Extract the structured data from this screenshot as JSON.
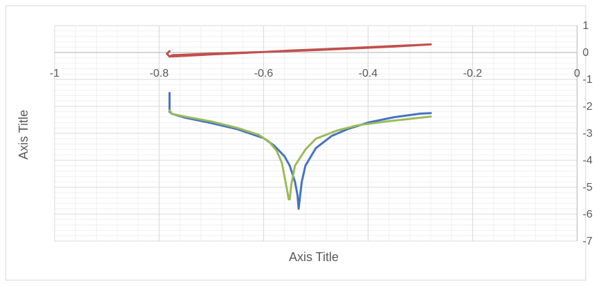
{
  "chart_data": {
    "type": "scatter",
    "title": "",
    "xlabel": "Axis Title",
    "ylabel": "Axis Title",
    "xlim": [
      -1,
      0
    ],
    "ylim": [
      -7,
      1
    ],
    "x_ticks": [
      -1,
      -0.8,
      -0.6,
      -0.4,
      -0.2,
      0
    ],
    "x_tick_labels": [
      "-1",
      "-0.8",
      "-0.6",
      "-0.4",
      "-0.2",
      "0"
    ],
    "y_ticks": [
      1,
      0,
      -1,
      -2,
      -3,
      -4,
      -5,
      -6,
      -7
    ],
    "y_tick_labels": [
      "1",
      "0",
      "-1",
      "-2",
      "-3",
      "-4",
      "-5",
      "-6",
      "-7"
    ],
    "grid": true,
    "minor_grid": true,
    "series": [
      {
        "color": "#4472C4",
        "x": [
          -0.78,
          -0.78,
          -0.775,
          -0.75,
          -0.7,
          -0.65,
          -0.6,
          -0.58,
          -0.56,
          -0.55,
          -0.54,
          -0.535,
          -0.533,
          -0.53,
          -0.527,
          -0.52,
          -0.5,
          -0.47,
          -0.44,
          -0.4,
          -0.35,
          -0.3,
          -0.28
        ],
        "y": [
          -1.5,
          -2.2,
          -2.28,
          -2.42,
          -2.62,
          -2.85,
          -3.18,
          -3.45,
          -3.85,
          -4.2,
          -4.8,
          -5.3,
          -5.8,
          -5.3,
          -4.8,
          -4.2,
          -3.55,
          -3.1,
          -2.85,
          -2.6,
          -2.4,
          -2.27,
          -2.25
        ]
      },
      {
        "color": "#C0504D",
        "x": [
          -0.78,
          -0.785,
          -0.78,
          -0.7,
          -0.6,
          -0.55,
          -0.45,
          -0.35,
          -0.28,
          -0.35,
          -0.5,
          -0.6,
          -0.7,
          -0.775,
          -0.78
        ],
        "y": [
          0.05,
          -0.05,
          -0.15,
          -0.07,
          0.02,
          0.07,
          0.15,
          0.24,
          0.3,
          0.22,
          0.09,
          0.02,
          -0.04,
          -0.1,
          -0.15
        ]
      },
      {
        "color": "#9BBB59",
        "x": [
          -0.78,
          -0.775,
          -0.75,
          -0.7,
          -0.65,
          -0.61,
          -0.59,
          -0.575,
          -0.565,
          -0.56,
          -0.555,
          -0.552,
          -0.55,
          -0.547,
          -0.54,
          -0.52,
          -0.5,
          -0.46,
          -0.42,
          -0.36,
          -0.3,
          -0.28
        ],
        "y": [
          -2.15,
          -2.28,
          -2.38,
          -2.56,
          -2.8,
          -3.05,
          -3.3,
          -3.65,
          -4.1,
          -4.6,
          -5.1,
          -5.45,
          -5.45,
          -4.9,
          -4.2,
          -3.6,
          -3.2,
          -2.9,
          -2.7,
          -2.55,
          -2.42,
          -2.38
        ]
      }
    ]
  }
}
